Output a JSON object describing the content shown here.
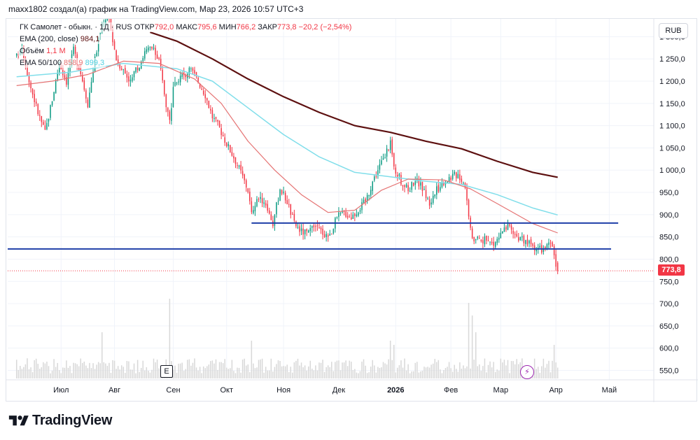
{
  "header": {
    "text": "maxx1802 создал(а) график на TradingView.com, Мар 23, 2026 10:57 UTC+3"
  },
  "legend": {
    "symbol": "ГК Самолет - обыкн. · 1Д · RUS",
    "open_label": "ОТКР",
    "open_value": "792,0",
    "high_label": "МАКС",
    "high_value": "795,6",
    "low_label": "МИН",
    "low_value": "766,2",
    "close_label": "ЗАКР",
    "close_value": "773,8",
    "change": "−20,2 (−2,54%)",
    "ema200_label": "EMA (200, close)",
    "ema200_value": "984,1",
    "volume_label": "Объём",
    "volume_value": "1,1 M",
    "ema50_100_label": "EMA 50/100",
    "ema50_value": "858,9",
    "ema100_value": "899,3"
  },
  "currency": "RUB",
  "last_price_tag": "773,8",
  "badges": {
    "earnings": "E",
    "event": "⚡"
  },
  "brand": {
    "name": "TradingView"
  },
  "colors": {
    "up": "#089981",
    "down": "#f23645",
    "ema50": "#e57373",
    "ema100": "#80deea",
    "ema200": "#5d1010",
    "support": "#1f3fa8",
    "grid": "#f0f3fa",
    "volume": "#d8d8d8"
  },
  "chart_data": {
    "type": "candlestick",
    "title": "ГК Самолет - обыкн. · 1Д · RUS",
    "y_axis": {
      "ticks": [
        "1 300,0",
        "1 250,0",
        "1 200,0",
        "1 150,0",
        "1 100,0",
        "1 050,0",
        "1 000,0",
        "950,0",
        "900,0",
        "850,0",
        "800,0",
        "750,0",
        "700,0",
        "650,0",
        "600,0",
        "550,0"
      ],
      "tick_values": [
        1300,
        1250,
        1200,
        1150,
        1100,
        1050,
        1000,
        950,
        900,
        850,
        800,
        750,
        700,
        650,
        600,
        550
      ],
      "range": [
        535,
        1340
      ]
    },
    "x_axis": {
      "labels": [
        "Июл",
        "Авг",
        "Сен",
        "Окт",
        "Ноя",
        "Дек",
        "2026",
        "Фев",
        "Мар",
        "Апр",
        "Май"
      ],
      "label_days": [
        25,
        55,
        88,
        118,
        150,
        181,
        213,
        244,
        272,
        303,
        333
      ],
      "range_days": [
        -5,
        358
      ]
    },
    "price_anchors": [
      {
        "day": 0,
        "price": 1255
      },
      {
        "day": 3,
        "price": 1280
      },
      {
        "day": 7,
        "price": 1200
      },
      {
        "day": 12,
        "price": 1130
      },
      {
        "day": 16,
        "price": 1085
      },
      {
        "day": 20,
        "price": 1160
      },
      {
        "day": 24,
        "price": 1240
      },
      {
        "day": 28,
        "price": 1200
      },
      {
        "day": 32,
        "price": 1270
      },
      {
        "day": 36,
        "price": 1220
      },
      {
        "day": 40,
        "price": 1150
      },
      {
        "day": 44,
        "price": 1250
      },
      {
        "day": 48,
        "price": 1330
      },
      {
        "day": 52,
        "price": 1340
      },
      {
        "day": 56,
        "price": 1250
      },
      {
        "day": 60,
        "price": 1225
      },
      {
        "day": 64,
        "price": 1200
      },
      {
        "day": 68,
        "price": 1230
      },
      {
        "day": 72,
        "price": 1265
      },
      {
        "day": 76,
        "price": 1275
      },
      {
        "day": 80,
        "price": 1245
      },
      {
        "day": 84,
        "price": 1150
      },
      {
        "day": 86,
        "price": 1110
      },
      {
        "day": 88,
        "price": 1185
      },
      {
        "day": 93,
        "price": 1210
      },
      {
        "day": 98,
        "price": 1225
      },
      {
        "day": 102,
        "price": 1200
      },
      {
        "day": 106,
        "price": 1170
      },
      {
        "day": 110,
        "price": 1120
      },
      {
        "day": 114,
        "price": 1095
      },
      {
        "day": 118,
        "price": 1060
      },
      {
        "day": 122,
        "price": 1030
      },
      {
        "day": 126,
        "price": 995
      },
      {
        "day": 130,
        "price": 955
      },
      {
        "day": 132,
        "price": 900
      },
      {
        "day": 136,
        "price": 940
      },
      {
        "day": 140,
        "price": 925
      },
      {
        "day": 144,
        "price": 880
      },
      {
        "day": 148,
        "price": 960
      },
      {
        "day": 152,
        "price": 930
      },
      {
        "day": 156,
        "price": 880
      },
      {
        "day": 160,
        "price": 862
      },
      {
        "day": 164,
        "price": 858
      },
      {
        "day": 168,
        "price": 872
      },
      {
        "day": 172,
        "price": 860
      },
      {
        "day": 176,
        "price": 852
      },
      {
        "day": 180,
        "price": 895
      },
      {
        "day": 184,
        "price": 905
      },
      {
        "day": 188,
        "price": 895
      },
      {
        "day": 192,
        "price": 912
      },
      {
        "day": 196,
        "price": 930
      },
      {
        "day": 200,
        "price": 975
      },
      {
        "day": 204,
        "price": 1010
      },
      {
        "day": 208,
        "price": 1040
      },
      {
        "day": 210,
        "price": 1065
      },
      {
        "day": 212,
        "price": 1005
      },
      {
        "day": 216,
        "price": 975
      },
      {
        "day": 220,
        "price": 955
      },
      {
        "day": 224,
        "price": 980
      },
      {
        "day": 228,
        "price": 960
      },
      {
        "day": 232,
        "price": 925
      },
      {
        "day": 236,
        "price": 955
      },
      {
        "day": 240,
        "price": 975
      },
      {
        "day": 244,
        "price": 985
      },
      {
        "day": 248,
        "price": 992
      },
      {
        "day": 252,
        "price": 968
      },
      {
        "day": 254,
        "price": 895
      },
      {
        "day": 256,
        "price": 848
      },
      {
        "day": 260,
        "price": 845
      },
      {
        "day": 264,
        "price": 842
      },
      {
        "day": 268,
        "price": 833
      },
      {
        "day": 272,
        "price": 855
      },
      {
        "day": 276,
        "price": 872
      },
      {
        "day": 280,
        "price": 855
      },
      {
        "day": 284,
        "price": 842
      },
      {
        "day": 288,
        "price": 835
      },
      {
        "day": 292,
        "price": 826
      },
      {
        "day": 296,
        "price": 822
      },
      {
        "day": 300,
        "price": 833
      },
      {
        "day": 302,
        "price": 812
      },
      {
        "day": 303,
        "price": 790
      },
      {
        "day": 304,
        "price": 773.8
      }
    ],
    "last_bar": {
      "open": 792.0,
      "high": 795.6,
      "low": 766.2,
      "close": 773.8
    },
    "ema200": [
      {
        "day": 75,
        "price": 1310
      },
      {
        "day": 90,
        "price": 1290
      },
      {
        "day": 110,
        "price": 1250
      },
      {
        "day": 130,
        "price": 1205
      },
      {
        "day": 150,
        "price": 1165
      },
      {
        "day": 170,
        "price": 1130
      },
      {
        "day": 190,
        "price": 1100
      },
      {
        "day": 210,
        "price": 1085
      },
      {
        "day": 230,
        "price": 1065
      },
      {
        "day": 250,
        "price": 1048
      },
      {
        "day": 270,
        "price": 1020
      },
      {
        "day": 290,
        "price": 995
      },
      {
        "day": 304,
        "price": 984.1
      }
    ],
    "ema50": [
      {
        "day": 0,
        "price": 1190
      },
      {
        "day": 20,
        "price": 1200
      },
      {
        "day": 40,
        "price": 1215
      },
      {
        "day": 60,
        "price": 1245
      },
      {
        "day": 80,
        "price": 1240
      },
      {
        "day": 100,
        "price": 1205
      },
      {
        "day": 115,
        "price": 1150
      },
      {
        "day": 130,
        "price": 1065
      },
      {
        "day": 145,
        "price": 1000
      },
      {
        "day": 160,
        "price": 945
      },
      {
        "day": 175,
        "price": 905
      },
      {
        "day": 190,
        "price": 910
      },
      {
        "day": 205,
        "price": 955
      },
      {
        "day": 220,
        "price": 980
      },
      {
        "day": 240,
        "price": 978
      },
      {
        "day": 255,
        "price": 958
      },
      {
        "day": 270,
        "price": 925
      },
      {
        "day": 290,
        "price": 880
      },
      {
        "day": 304,
        "price": 858.9
      }
    ],
    "ema100": [
      {
        "day": 0,
        "price": 1210
      },
      {
        "day": 30,
        "price": 1220
      },
      {
        "day": 60,
        "price": 1240
      },
      {
        "day": 90,
        "price": 1228
      },
      {
        "day": 110,
        "price": 1200
      },
      {
        "day": 130,
        "price": 1140
      },
      {
        "day": 150,
        "price": 1080
      },
      {
        "day": 170,
        "price": 1030
      },
      {
        "day": 190,
        "price": 995
      },
      {
        "day": 210,
        "price": 985
      },
      {
        "day": 230,
        "price": 975
      },
      {
        "day": 250,
        "price": 968
      },
      {
        "day": 270,
        "price": 945
      },
      {
        "day": 290,
        "price": 915
      },
      {
        "day": 304,
        "price": 899.3
      }
    ],
    "support_lines": [
      {
        "price": 881,
        "from_day": 132,
        "to_day": 338
      },
      {
        "price": 823,
        "from_day": -5,
        "to_day": 334
      }
    ],
    "volume_spikes": [
      {
        "day": 86,
        "value": 0.95
      },
      {
        "day": 254,
        "value": 0.9
      },
      {
        "day": 256,
        "value": 0.75
      },
      {
        "day": 258,
        "value": 0.55
      },
      {
        "day": 210,
        "value": 0.45
      },
      {
        "day": 212,
        "value": 0.4
      },
      {
        "day": 48,
        "value": 0.55
      },
      {
        "day": 132,
        "value": 0.45
      },
      {
        "day": 302,
        "value": 0.4
      }
    ]
  }
}
